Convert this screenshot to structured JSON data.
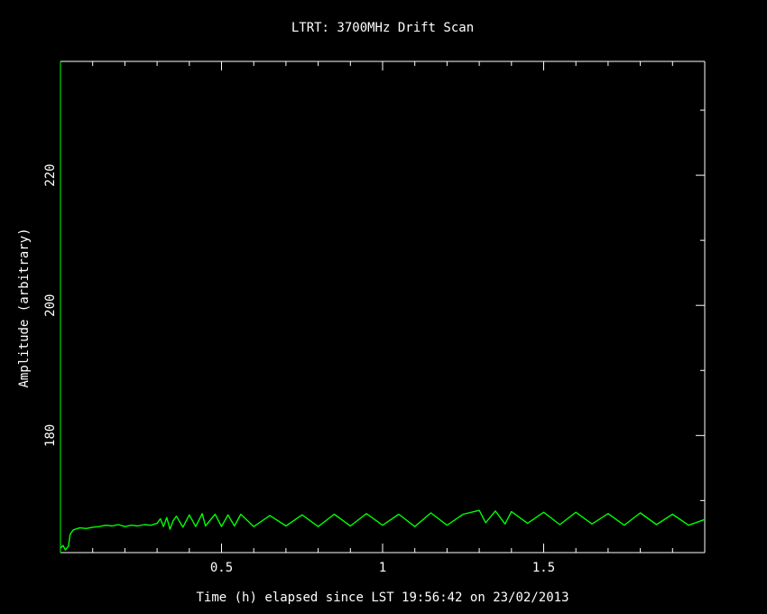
{
  "chart_data": {
    "type": "line",
    "title": "LTRT: 3700MHz Drift Scan",
    "xlabel": "Time (h) elapsed since LST 19:56:42 on 23/02/2013",
    "ylabel": "Amplitude (arbitrary)",
    "xlim": [
      0,
      2.0
    ],
    "ylim": [
      162,
      237.5
    ],
    "x_ticks": [
      0.5,
      1,
      1.5
    ],
    "x_tick_labels": [
      "0.5",
      "1",
      "1.5"
    ],
    "y_ticks": [
      180,
      200,
      220
    ],
    "y_tick_labels": [
      "180",
      "200",
      "220"
    ],
    "grid": false,
    "colors": {
      "background": "#000000",
      "axes": "#ffffff",
      "frame_left": "#00ff00",
      "line": "#00ff00"
    },
    "series": [
      {
        "x": [
          0.0,
          0.008,
          0.015,
          0.025,
          0.03,
          0.04,
          0.06,
          0.08,
          0.1,
          0.12,
          0.14,
          0.16,
          0.18,
          0.2,
          0.22,
          0.24,
          0.26,
          0.28,
          0.3,
          0.31,
          0.32,
          0.33,
          0.34,
          0.35,
          0.36,
          0.38,
          0.4,
          0.42,
          0.44,
          0.45,
          0.48,
          0.5,
          0.52,
          0.54,
          0.56,
          0.6,
          0.65,
          0.7,
          0.75,
          0.8,
          0.85,
          0.9,
          0.95,
          1.0,
          1.05,
          1.1,
          1.15,
          1.2,
          1.25,
          1.3,
          1.32,
          1.35,
          1.38,
          1.4,
          1.45,
          1.5,
          1.55,
          1.6,
          1.65,
          1.7,
          1.75,
          1.8,
          1.85,
          1.9,
          1.95,
          2.0
        ],
        "y": [
          162.7,
          163.1,
          162.4,
          163.0,
          164.8,
          165.5,
          165.8,
          165.7,
          165.9,
          166.0,
          166.2,
          166.1,
          166.3,
          166.0,
          166.2,
          166.1,
          166.3,
          166.2,
          166.5,
          167.2,
          166.0,
          167.4,
          165.6,
          166.9,
          167.6,
          165.9,
          167.8,
          166.0,
          168.0,
          166.1,
          167.9,
          166.0,
          167.8,
          166.1,
          167.9,
          166.0,
          167.7,
          166.1,
          167.8,
          166.0,
          167.9,
          166.1,
          168.0,
          166.2,
          167.9,
          166.0,
          168.1,
          166.2,
          167.9,
          168.5,
          166.6,
          168.4,
          166.4,
          168.3,
          166.5,
          168.2,
          166.3,
          168.2,
          166.4,
          168.0,
          166.2,
          168.1,
          166.3,
          167.9,
          166.2,
          167.1
        ]
      }
    ]
  }
}
